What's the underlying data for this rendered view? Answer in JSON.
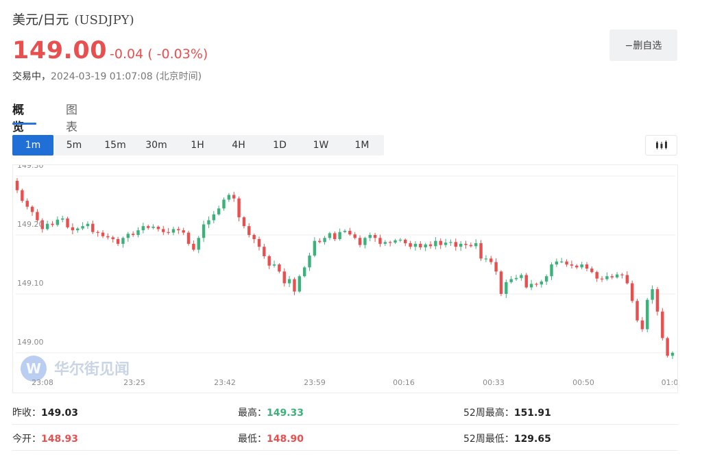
{
  "header": {
    "name": "美元/日元",
    "symbol": "(USDJPY)",
    "price": "149.00",
    "change": "-0.04 ( -0.03%)",
    "status": "交易中，",
    "time": "2024-03-19 01:07:08 (北京时间)",
    "unfav_label": "−删自选"
  },
  "tabs": [
    {
      "label": "概览",
      "active": true
    },
    {
      "label": "图表",
      "active": false
    }
  ],
  "periods": [
    "1m",
    "5m",
    "15m",
    "30m",
    "1H",
    "4H",
    "1D",
    "1W",
    "1M"
  ],
  "active_period": "1m",
  "watermark": "华尔街见闻",
  "colors": {
    "up": "#3cb27b",
    "down": "#e84f4f",
    "accent": "#1f6fd7"
  },
  "chart_data": {
    "type": "candlestick",
    "y_ticks": [
      "149.30",
      "149.20",
      "149.10",
      "149.00"
    ],
    "y_tick_values": [
      149.3,
      149.2,
      149.1,
      149.0
    ],
    "x_ticks": [
      "23:08",
      "23:25",
      "23:42",
      "23:59",
      "00:16",
      "00:33",
      "00:50",
      "01:0"
    ],
    "ylim": [
      148.965,
      149.315
    ],
    "grid": true,
    "close": [
      149.276,
      149.258,
      149.248,
      149.239,
      149.225,
      149.21,
      149.219,
      149.217,
      149.226,
      149.228,
      149.213,
      149.208,
      149.211,
      149.215,
      149.219,
      149.205,
      149.204,
      149.198,
      149.196,
      149.193,
      149.185,
      149.195,
      149.202,
      149.2,
      149.208,
      149.215,
      149.212,
      149.214,
      149.21,
      149.205,
      149.204,
      149.21,
      149.208,
      149.204,
      149.185,
      149.175,
      149.195,
      149.218,
      149.225,
      149.235,
      149.245,
      149.26,
      149.268,
      149.262,
      149.23,
      149.215,
      149.2,
      149.193,
      149.18,
      149.164,
      149.148,
      149.15,
      149.138,
      149.118,
      149.125,
      149.104,
      149.13,
      149.145,
      149.165,
      149.19,
      149.188,
      149.195,
      149.203,
      149.193,
      149.205,
      149.207,
      149.201,
      149.195,
      149.183,
      149.195,
      149.2,
      149.195,
      149.185,
      149.188,
      149.187,
      149.191,
      149.192,
      149.186,
      149.18,
      149.185,
      149.179,
      149.184,
      149.181,
      149.19,
      149.183,
      149.187,
      149.188,
      149.18,
      149.185,
      149.183,
      149.181,
      149.186,
      149.16,
      149.16,
      149.154,
      149.138,
      149.1,
      149.12,
      149.125,
      149.127,
      149.132,
      149.111,
      149.117,
      149.116,
      149.121,
      149.13,
      149.15,
      149.155,
      149.155,
      149.15,
      149.148,
      149.145,
      149.15,
      149.143,
      149.137,
      149.126,
      149.125,
      149.13,
      149.128,
      149.133,
      149.132,
      149.118,
      149.088,
      149.055,
      149.04,
      149.09,
      149.108,
      149.07,
      149.025,
      148.995,
      149.0
    ],
    "note": "approximate 1-minute candles read from the chart"
  },
  "stats": {
    "prev_close_label": "昨收：",
    "prev_close": "149.03",
    "high_label": "最高：",
    "high": "149.33",
    "w52_high_label": "52周最高：",
    "w52_high": "151.91",
    "open_label": "今开：",
    "open": "148.93",
    "low_label": "最低：",
    "low": "148.90",
    "w52_low_label": "52周最低：",
    "w52_low": "129.65"
  }
}
